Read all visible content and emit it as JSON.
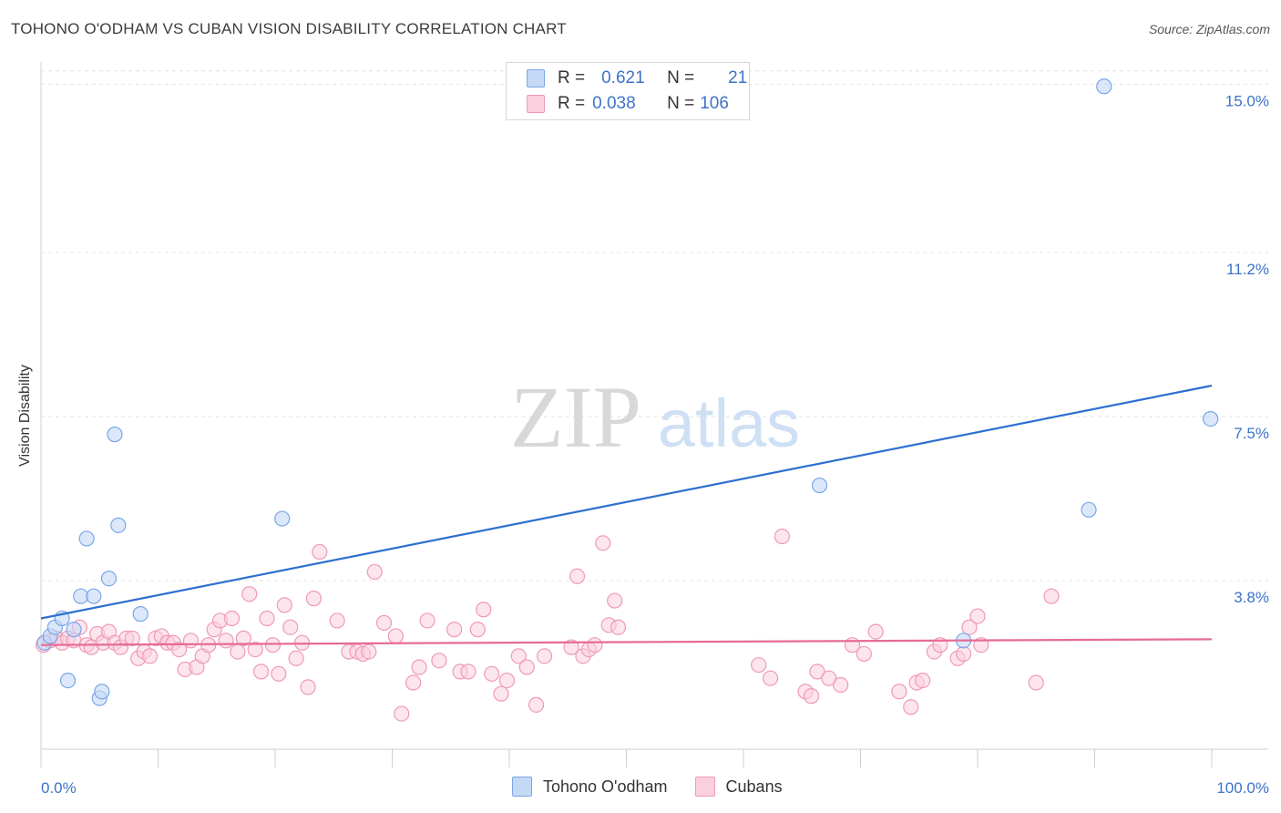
{
  "title": "TOHONO O'ODHAM VS CUBAN VISION DISABILITY CORRELATION CHART",
  "source": "Source: ZipAtlas.com",
  "watermark": {
    "zip": "ZIP",
    "atlas": "atlas"
  },
  "legend": {
    "r_label": "R =",
    "n_label": "N =",
    "rows": [
      {
        "r": "0.621",
        "n": "21",
        "color": "#7aa6e6",
        "fill": "#c4d9f6"
      },
      {
        "r": "0.038",
        "n": "106",
        "color": "#ef9ab5",
        "fill": "#fbd0de"
      }
    ]
  },
  "chart_data": {
    "type": "scatter",
    "title": "TOHONO O'ODHAM VS CUBAN VISION DISABILITY CORRELATION CHART",
    "xlabel": "",
    "ylabel": "Vision Disability",
    "xlim": [
      0,
      100
    ],
    "ylim": [
      0,
      15.5
    ],
    "x_tick_labels": [
      "0.0%",
      "100.0%"
    ],
    "y_ticks": [
      3.8,
      7.5,
      11.2,
      15.0
    ],
    "y_tick_labels": [
      "3.8%",
      "7.5%",
      "11.2%",
      "15.0%"
    ],
    "grid": true,
    "series": [
      {
        "name": "Tohono O'odham",
        "color": "#7aa6e6",
        "fill": "#c4d9f6",
        "trend": {
          "x": [
            0,
            100
          ],
          "y": [
            2.95,
            8.2
          ]
        },
        "points": [
          [
            0.3,
            2.4
          ],
          [
            0.8,
            2.55
          ],
          [
            1.2,
            2.75
          ],
          [
            1.8,
            2.95
          ],
          [
            2.3,
            1.55
          ],
          [
            2.8,
            2.7
          ],
          [
            3.4,
            3.45
          ],
          [
            3.9,
            4.75
          ],
          [
            4.5,
            3.45
          ],
          [
            5.0,
            1.15
          ],
          [
            5.2,
            1.3
          ],
          [
            5.8,
            3.85
          ],
          [
            6.3,
            7.1
          ],
          [
            6.6,
            5.05
          ],
          [
            8.5,
            3.05
          ],
          [
            20.6,
            5.2
          ],
          [
            66.5,
            5.95
          ],
          [
            78.8,
            2.45
          ],
          [
            89.5,
            5.4
          ],
          [
            90.8,
            14.95
          ],
          [
            99.9,
            7.45
          ]
        ]
      },
      {
        "name": "Cubans",
        "color": "#ef9ab5",
        "fill": "#fbd0de",
        "trend": {
          "x": [
            0,
            100
          ],
          "y": [
            2.35,
            2.48
          ]
        },
        "points": [
          [
            0.2,
            2.35
          ],
          [
            0.8,
            2.45
          ],
          [
            1.3,
            2.5
          ],
          [
            1.8,
            2.4
          ],
          [
            2.3,
            2.5
          ],
          [
            2.8,
            2.45
          ],
          [
            3.3,
            2.75
          ],
          [
            3.9,
            2.35
          ],
          [
            4.3,
            2.3
          ],
          [
            4.8,
            2.6
          ],
          [
            5.3,
            2.4
          ],
          [
            5.8,
            2.65
          ],
          [
            6.3,
            2.4
          ],
          [
            6.8,
            2.3
          ],
          [
            7.3,
            2.5
          ],
          [
            7.8,
            2.5
          ],
          [
            8.3,
            2.05
          ],
          [
            8.8,
            2.2
          ],
          [
            9.3,
            2.1
          ],
          [
            9.8,
            2.5
          ],
          [
            10.3,
            2.55
          ],
          [
            10.8,
            2.4
          ],
          [
            11.3,
            2.4
          ],
          [
            11.8,
            2.25
          ],
          [
            12.3,
            1.8
          ],
          [
            12.8,
            2.45
          ],
          [
            13.3,
            1.85
          ],
          [
            13.8,
            2.1
          ],
          [
            14.3,
            2.35
          ],
          [
            14.8,
            2.7
          ],
          [
            15.3,
            2.9
          ],
          [
            15.8,
            2.45
          ],
          [
            16.3,
            2.95
          ],
          [
            16.8,
            2.2
          ],
          [
            17.3,
            2.5
          ],
          [
            17.8,
            3.5
          ],
          [
            18.3,
            2.25
          ],
          [
            18.8,
            1.75
          ],
          [
            19.3,
            2.95
          ],
          [
            19.8,
            2.35
          ],
          [
            20.3,
            1.7
          ],
          [
            20.8,
            3.25
          ],
          [
            21.3,
            2.75
          ],
          [
            21.8,
            2.05
          ],
          [
            22.3,
            2.4
          ],
          [
            22.8,
            1.4
          ],
          [
            23.3,
            3.4
          ],
          [
            23.8,
            4.45
          ],
          [
            25.3,
            2.9
          ],
          [
            26.3,
            2.2
          ],
          [
            27.0,
            2.2
          ],
          [
            27.5,
            2.15
          ],
          [
            28.0,
            2.2
          ],
          [
            28.5,
            4.0
          ],
          [
            29.3,
            2.85
          ],
          [
            30.3,
            2.55
          ],
          [
            30.8,
            0.8
          ],
          [
            31.8,
            1.5
          ],
          [
            32.3,
            1.85
          ],
          [
            33.0,
            2.9
          ],
          [
            34.0,
            2.0
          ],
          [
            35.3,
            2.7
          ],
          [
            35.8,
            1.75
          ],
          [
            36.5,
            1.75
          ],
          [
            37.3,
            2.7
          ],
          [
            37.8,
            3.15
          ],
          [
            38.5,
            1.7
          ],
          [
            39.3,
            1.25
          ],
          [
            39.8,
            1.55
          ],
          [
            40.8,
            2.1
          ],
          [
            41.5,
            1.85
          ],
          [
            42.3,
            1.0
          ],
          [
            43.0,
            2.1
          ],
          [
            45.3,
            2.3
          ],
          [
            45.8,
            3.9
          ],
          [
            46.3,
            2.1
          ],
          [
            46.8,
            2.25
          ],
          [
            47.3,
            2.35
          ],
          [
            48.0,
            4.65
          ],
          [
            48.5,
            2.8
          ],
          [
            49.0,
            3.35
          ],
          [
            49.3,
            2.75
          ],
          [
            61.3,
            1.9
          ],
          [
            62.3,
            1.6
          ],
          [
            63.3,
            4.8
          ],
          [
            65.3,
            1.3
          ],
          [
            65.8,
            1.2
          ],
          [
            66.3,
            1.75
          ],
          [
            67.3,
            1.6
          ],
          [
            68.3,
            1.45
          ],
          [
            69.3,
            2.35
          ],
          [
            70.3,
            2.15
          ],
          [
            71.3,
            2.65
          ],
          [
            73.3,
            1.3
          ],
          [
            74.3,
            0.95
          ],
          [
            74.8,
            1.5
          ],
          [
            75.3,
            1.55
          ],
          [
            76.3,
            2.2
          ],
          [
            76.8,
            2.35
          ],
          [
            78.3,
            2.05
          ],
          [
            78.8,
            2.15
          ],
          [
            79.3,
            2.75
          ],
          [
            80.0,
            3.0
          ],
          [
            80.3,
            2.35
          ],
          [
            85.0,
            1.5
          ],
          [
            86.3,
            3.45
          ]
        ]
      }
    ]
  },
  "bottom_legend": [
    "Tohono O'odham",
    "Cubans"
  ]
}
